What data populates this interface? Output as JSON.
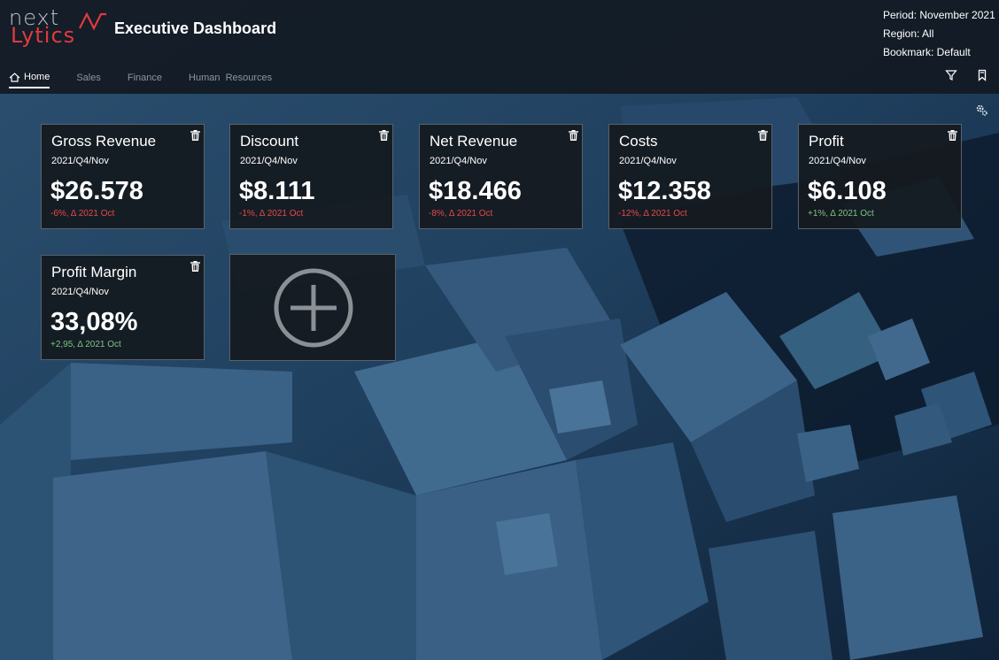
{
  "header": {
    "logo_line1": "next",
    "logo_line2": "Lytics",
    "title": "Executive Dashboard",
    "period": "Period: November 2021",
    "region": "Region: All",
    "bookmark": "Bookmark: Default"
  },
  "tabs": [
    {
      "label": "Home",
      "active": true
    },
    {
      "label": "Sales",
      "active": false
    },
    {
      "label": "Finance",
      "active": false
    },
    {
      "label": "Human  Resources",
      "active": false
    }
  ],
  "header_icons": [
    "filter-icon",
    "bookmark-icon"
  ],
  "settings_icon": "settings-icon",
  "tiles": [
    {
      "title": "Gross Revenue",
      "period": "2021/Q4/Nov",
      "value": "$26.578",
      "delta": "-6%, Δ 2021 Oct",
      "trend": "negative"
    },
    {
      "title": "Discount",
      "period": "2021/Q4/Nov",
      "value": "$8.111",
      "delta": "-1%, Δ 2021 Oct",
      "trend": "negative"
    },
    {
      "title": "Net Revenue",
      "period": "2021/Q4/Nov",
      "value": "$18.466",
      "delta": "-8%, Δ 2021 Oct",
      "trend": "negative"
    },
    {
      "title": "Costs",
      "period": "2021/Q4/Nov",
      "value": "$12.358",
      "delta": "-12%, Δ 2021 Oct",
      "trend": "negative"
    },
    {
      "title": "Profit",
      "period": "2021/Q4/Nov",
      "value": "$6.108",
      "delta": "+1%, Δ 2021 Oct",
      "trend": "positive"
    },
    {
      "title": "Profit Margin",
      "period": "2021/Q4/Nov",
      "value": "33,08%",
      "delta": "+2,95, Δ 2021 Oct",
      "trend": "positive"
    }
  ],
  "add_tile_icon": "add-circle-icon",
  "colors": {
    "negative": "#e8484a",
    "positive": "#7ec486",
    "brand_red": "#e03a3e",
    "tile_bg": "#14191f",
    "background": "#132a40"
  }
}
